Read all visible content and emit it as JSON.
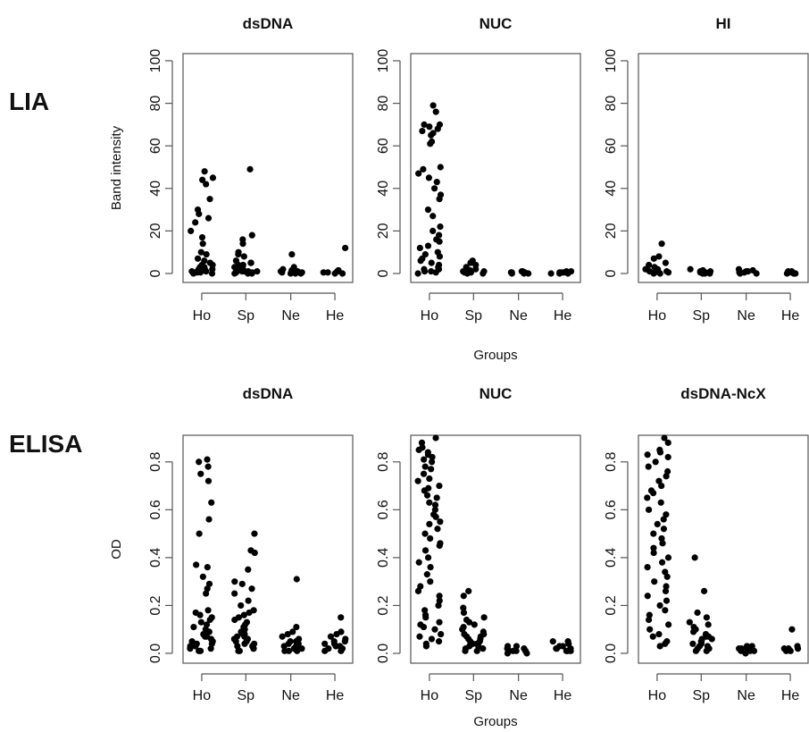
{
  "row_labels": [
    "LIA",
    "ELISA"
  ],
  "chart_data": [
    {
      "type": "scatter",
      "title": "dsDNA",
      "row": "LIA",
      "ylabel": "Band intensity",
      "xlabel": "",
      "categories": [
        "Ho",
        "Sp",
        "Ne",
        "He"
      ],
      "ylim": [
        0,
        100
      ],
      "yticks": [
        0,
        20,
        40,
        60,
        80,
        100
      ],
      "grid": false,
      "values": [
        [
          48,
          45,
          44,
          42,
          35,
          30,
          28,
          26,
          24,
          20,
          17,
          14,
          10,
          9,
          7,
          6,
          5,
          4,
          4,
          3,
          3,
          2,
          2,
          2,
          1,
          1,
          1,
          1,
          0.5,
          0.5,
          0,
          0
        ],
        [
          49,
          18,
          16,
          14,
          10,
          9,
          8,
          6,
          5,
          5,
          4,
          4,
          3,
          3,
          2,
          2,
          2,
          1,
          1,
          1,
          1,
          0.5,
          0.5,
          0,
          0,
          0
        ],
        [
          9,
          3,
          2,
          1.5,
          1,
          1,
          1,
          0.5,
          0.5,
          0.5,
          0,
          0,
          0
        ],
        [
          12,
          1.5,
          1,
          1,
          0.5,
          0.5,
          0,
          0
        ]
      ]
    },
    {
      "type": "scatter",
      "title": "NUC",
      "row": "LIA",
      "ylabel": "",
      "xlabel": "Groups",
      "categories": [
        "Ho",
        "Sp",
        "Ne",
        "He"
      ],
      "ylim": [
        0,
        100
      ],
      "yticks": [
        0,
        20,
        40,
        60,
        80,
        100
      ],
      "grid": false,
      "values": [
        [
          79,
          76,
          70,
          70,
          69,
          68,
          67,
          66,
          65,
          62,
          61,
          50,
          49,
          47,
          45,
          43,
          40,
          37,
          35,
          30,
          27,
          22,
          20,
          18,
          16,
          15,
          13,
          12,
          10,
          9,
          8,
          7,
          6,
          5,
          4,
          3,
          2,
          2,
          1,
          1,
          0.5,
          0
        ],
        [
          6,
          5,
          4,
          3,
          2,
          1.5,
          1,
          1,
          0.5,
          0.5,
          0,
          0
        ],
        [
          1,
          1,
          0.5,
          0.5,
          0.5,
          0,
          0,
          0
        ],
        [
          1,
          1,
          0.5,
          0.5,
          0.5,
          0,
          0,
          0
        ]
      ]
    },
    {
      "type": "scatter",
      "title": "HI",
      "row": "LIA",
      "ylabel": "",
      "xlabel": "",
      "categories": [
        "Ho",
        "Sp",
        "Ne",
        "He"
      ],
      "ylim": [
        0,
        100
      ],
      "yticks": [
        0,
        20,
        40,
        60,
        80,
        100
      ],
      "grid": false,
      "values": [
        [
          14,
          8,
          7,
          5,
          4,
          3,
          2,
          2,
          1,
          1,
          1,
          0.5,
          0.5,
          0,
          0
        ],
        [
          2,
          1.5,
          1,
          1,
          0.5,
          0.5,
          0,
          0,
          0
        ],
        [
          2,
          1.5,
          1,
          1,
          0.5,
          0.5,
          0,
          0
        ],
        [
          1,
          1,
          0.5,
          0.5,
          0,
          0,
          0
        ]
      ]
    },
    {
      "type": "scatter",
      "title": "dsDNA",
      "row": "ELISA",
      "ylabel": "OD",
      "xlabel": "",
      "categories": [
        "Ho",
        "Sp",
        "Ne",
        "He"
      ],
      "ylim": [
        0,
        0.9
      ],
      "yticks": [
        "0.0",
        "0.2",
        "0.4",
        "0.6",
        "0.8"
      ],
      "grid": false,
      "values": [
        [
          0.81,
          0.8,
          0.78,
          0.75,
          0.72,
          0.63,
          0.56,
          0.5,
          0.37,
          0.36,
          0.32,
          0.29,
          0.27,
          0.25,
          0.18,
          0.17,
          0.16,
          0.15,
          0.14,
          0.13,
          0.12,
          0.11,
          0.1,
          0.09,
          0.08,
          0.07,
          0.07,
          0.06,
          0.05,
          0.05,
          0.04,
          0.04,
          0.03,
          0.03,
          0.02,
          0.02,
          0.01,
          0.01
        ],
        [
          0.5,
          0.43,
          0.42,
          0.35,
          0.3,
          0.29,
          0.27,
          0.25,
          0.22,
          0.2,
          0.18,
          0.17,
          0.16,
          0.15,
          0.14,
          0.13,
          0.12,
          0.11,
          0.1,
          0.09,
          0.08,
          0.08,
          0.07,
          0.07,
          0.06,
          0.06,
          0.05,
          0.05,
          0.04,
          0.04,
          0.03,
          0.03,
          0.02,
          0.02,
          0.01,
          0.01
        ],
        [
          0.31,
          0.11,
          0.09,
          0.08,
          0.07,
          0.06,
          0.05,
          0.05,
          0.04,
          0.04,
          0.03,
          0.03,
          0.02,
          0.02,
          0.01,
          0.01,
          0.01
        ],
        [
          0.15,
          0.09,
          0.08,
          0.07,
          0.06,
          0.05,
          0.05,
          0.04,
          0.04,
          0.03,
          0.03,
          0.02,
          0.02,
          0.01,
          0.01
        ]
      ]
    },
    {
      "type": "scatter",
      "title": "NUC",
      "row": "ELISA",
      "ylabel": "",
      "xlabel": "Groups",
      "categories": [
        "Ho",
        "Sp",
        "Ne",
        "He"
      ],
      "ylim": [
        0,
        0.9
      ],
      "yticks": [
        "0.0",
        "0.2",
        "0.4",
        "0.6",
        "0.8"
      ],
      "grid": false,
      "values": [
        [
          0.9,
          0.88,
          0.86,
          0.85,
          0.84,
          0.83,
          0.82,
          0.81,
          0.8,
          0.78,
          0.77,
          0.75,
          0.73,
          0.72,
          0.7,
          0.69,
          0.68,
          0.66,
          0.65,
          0.63,
          0.62,
          0.6,
          0.58,
          0.57,
          0.55,
          0.54,
          0.52,
          0.5,
          0.48,
          0.46,
          0.45,
          0.43,
          0.4,
          0.38,
          0.36,
          0.33,
          0.3,
          0.28,
          0.26,
          0.24,
          0.22,
          0.2,
          0.18,
          0.16,
          0.15,
          0.13,
          0.12,
          0.11,
          0.1,
          0.08,
          0.07,
          0.06,
          0.05,
          0.04,
          0.03
        ],
        [
          0.26,
          0.24,
          0.19,
          0.17,
          0.15,
          0.14,
          0.13,
          0.12,
          0.11,
          0.1,
          0.09,
          0.08,
          0.08,
          0.07,
          0.07,
          0.06,
          0.06,
          0.05,
          0.05,
          0.04,
          0.04,
          0.03,
          0.03,
          0.02,
          0.02,
          0.01,
          0.01
        ],
        [
          0.03,
          0.03,
          0.02,
          0.02,
          0.02,
          0.01,
          0.01,
          0.01,
          0.01,
          0.0,
          0.0
        ],
        [
          0.05,
          0.05,
          0.04,
          0.03,
          0.03,
          0.02,
          0.02,
          0.02,
          0.01,
          0.01,
          0.01
        ]
      ]
    },
    {
      "type": "scatter",
      "title": "dsDNA-NcX",
      "row": "ELISA",
      "ylabel": "",
      "xlabel": "",
      "categories": [
        "Ho",
        "Sp",
        "Ne",
        "He"
      ],
      "ylim": [
        0,
        0.9
      ],
      "yticks": [
        "0.0",
        "0.2",
        "0.4",
        "0.6",
        "0.8"
      ],
      "grid": false,
      "values": [
        [
          0.9,
          0.88,
          0.85,
          0.84,
          0.83,
          0.82,
          0.8,
          0.78,
          0.76,
          0.74,
          0.72,
          0.7,
          0.68,
          0.67,
          0.65,
          0.63,
          0.6,
          0.58,
          0.56,
          0.54,
          0.52,
          0.5,
          0.48,
          0.46,
          0.44,
          0.42,
          0.4,
          0.38,
          0.36,
          0.34,
          0.32,
          0.3,
          0.28,
          0.26,
          0.24,
          0.22,
          0.2,
          0.18,
          0.16,
          0.14,
          0.12,
          0.1,
          0.08,
          0.07,
          0.05,
          0.04,
          0.03
        ],
        [
          0.4,
          0.26,
          0.17,
          0.15,
          0.13,
          0.12,
          0.11,
          0.1,
          0.09,
          0.08,
          0.07,
          0.07,
          0.06,
          0.06,
          0.05,
          0.05,
          0.04,
          0.04,
          0.03,
          0.03,
          0.02,
          0.02,
          0.01,
          0.01
        ],
        [
          0.03,
          0.03,
          0.02,
          0.02,
          0.02,
          0.01,
          0.01,
          0.01,
          0.0
        ],
        [
          0.1,
          0.03,
          0.02,
          0.02,
          0.02,
          0.01,
          0.01
        ]
      ]
    }
  ],
  "style": {
    "point_color": "#000000",
    "axis_color": "#555555",
    "text_color": "#111111"
  }
}
